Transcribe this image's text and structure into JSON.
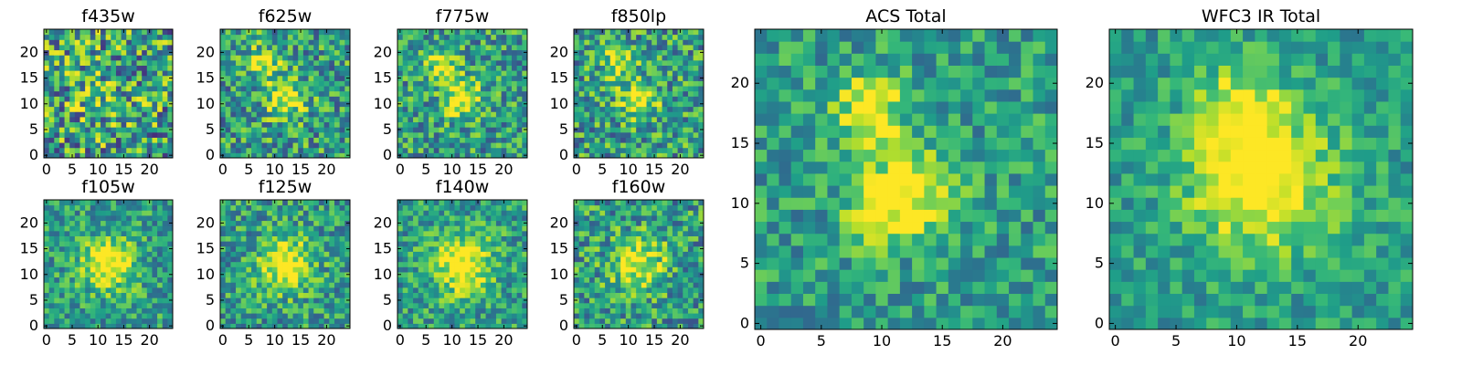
{
  "figure": {
    "colormap": "viridis",
    "colors": {
      "low": "#440154",
      "mid": "#21918c",
      "high": "#fde725"
    }
  },
  "chart_data": [
    {
      "type": "heatmap",
      "title": "f435w",
      "xlim": [
        0,
        24
      ],
      "ylim": [
        0,
        24
      ],
      "x_ticks": [
        0,
        5,
        10,
        15,
        20
      ],
      "y_ticks": [
        0,
        5,
        10,
        15,
        20
      ],
      "grid": false,
      "cells": 25,
      "noise": 0.42,
      "seed": 11,
      "peaks": [
        [
          10,
          12,
          5,
          0.12
        ]
      ]
    },
    {
      "type": "heatmap",
      "title": "f625w",
      "xlim": [
        0,
        24
      ],
      "ylim": [
        0,
        24
      ],
      "x_ticks": [
        0,
        5,
        10,
        15,
        20
      ],
      "y_ticks": [
        0,
        5,
        10,
        15,
        20
      ],
      "grid": false,
      "cells": 25,
      "noise": 0.32,
      "seed": 23,
      "peaks": [
        [
          12,
          11,
          2.5,
          0.5
        ],
        [
          8,
          18,
          2.2,
          0.4
        ]
      ]
    },
    {
      "type": "heatmap",
      "title": "f775w",
      "xlim": [
        0,
        24
      ],
      "ylim": [
        0,
        24
      ],
      "x_ticks": [
        0,
        5,
        10,
        15,
        20
      ],
      "y_ticks": [
        0,
        5,
        10,
        15,
        20
      ],
      "grid": false,
      "cells": 25,
      "noise": 0.3,
      "seed": 37,
      "peaks": [
        [
          12,
          11,
          2.5,
          0.5
        ],
        [
          8,
          18,
          2.2,
          0.45
        ]
      ]
    },
    {
      "type": "heatmap",
      "title": "f850lp",
      "xlim": [
        0,
        24
      ],
      "ylim": [
        0,
        24
      ],
      "x_ticks": [
        0,
        5,
        10,
        15,
        20
      ],
      "y_ticks": [
        0,
        5,
        10,
        15,
        20
      ],
      "grid": false,
      "cells": 25,
      "noise": 0.32,
      "seed": 41,
      "peaks": [
        [
          12,
          11,
          2.5,
          0.45
        ],
        [
          8,
          18,
          2.2,
          0.4
        ]
      ]
    },
    {
      "type": "heatmap",
      "title": "f105w",
      "xlim": [
        0,
        24
      ],
      "ylim": [
        0,
        24
      ],
      "x_ticks": [
        0,
        5,
        10,
        15,
        20
      ],
      "y_ticks": [
        0,
        5,
        10,
        15,
        20
      ],
      "grid": false,
      "cells": 25,
      "noise": 0.25,
      "seed": 53,
      "peaks": [
        [
          12,
          12,
          3.5,
          0.55
        ]
      ]
    },
    {
      "type": "heatmap",
      "title": "f125w",
      "xlim": [
        0,
        24
      ],
      "ylim": [
        0,
        24
      ],
      "x_ticks": [
        0,
        5,
        10,
        15,
        20
      ],
      "y_ticks": [
        0,
        5,
        10,
        15,
        20
      ],
      "grid": false,
      "cells": 25,
      "noise": 0.27,
      "seed": 67,
      "peaks": [
        [
          12,
          12,
          3.5,
          0.55
        ]
      ]
    },
    {
      "type": "heatmap",
      "title": "f140w",
      "xlim": [
        0,
        24
      ],
      "ylim": [
        0,
        24
      ],
      "x_ticks": [
        0,
        5,
        10,
        15,
        20
      ],
      "y_ticks": [
        0,
        5,
        10,
        15,
        20
      ],
      "grid": false,
      "cells": 25,
      "noise": 0.25,
      "seed": 71,
      "peaks": [
        [
          12,
          12,
          4.0,
          0.55
        ]
      ]
    },
    {
      "type": "heatmap",
      "title": "f160w",
      "xlim": [
        0,
        24
      ],
      "ylim": [
        0,
        24
      ],
      "x_ticks": [
        0,
        5,
        10,
        15,
        20
      ],
      "y_ticks": [
        0,
        5,
        10,
        15,
        20
      ],
      "grid": false,
      "cells": 25,
      "noise": 0.3,
      "seed": 83,
      "peaks": [
        [
          12,
          12,
          3.5,
          0.5
        ]
      ]
    },
    {
      "type": "heatmap",
      "title": "ACS Total",
      "xlim": [
        0,
        24
      ],
      "ylim": [
        0,
        24
      ],
      "x_ticks": [
        0,
        5,
        10,
        15,
        20
      ],
      "y_ticks": [
        0,
        5,
        10,
        15,
        20
      ],
      "grid": false,
      "cells": 25,
      "noise": 0.22,
      "seed": 97,
      "peaks": [
        [
          12,
          11,
          2.5,
          0.55
        ],
        [
          9,
          18,
          2.0,
          0.5
        ],
        [
          9,
          9,
          1.6,
          0.3
        ]
      ]
    },
    {
      "type": "heatmap",
      "title": "WFC3 IR Total",
      "xlim": [
        0,
        24
      ],
      "ylim": [
        0,
        24
      ],
      "x_ticks": [
        0,
        5,
        10,
        15,
        20
      ],
      "y_ticks": [
        0,
        5,
        10,
        15,
        20
      ],
      "grid": false,
      "cells": 25,
      "noise": 0.18,
      "seed": 109,
      "peaks": [
        [
          12,
          12,
          4.0,
          0.6
        ],
        [
          10,
          18,
          2.5,
          0.35
        ]
      ]
    }
  ]
}
